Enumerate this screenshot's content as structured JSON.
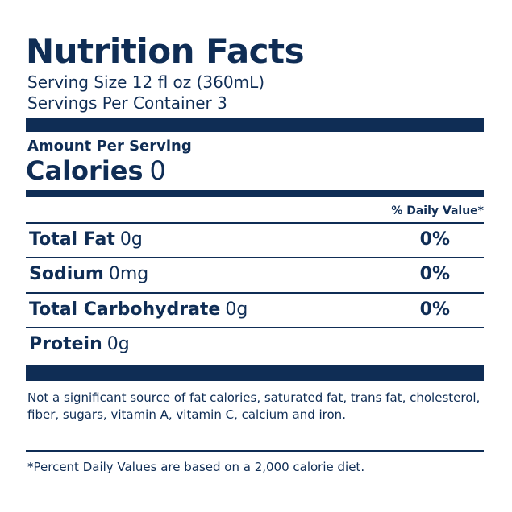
{
  "colors": {
    "ink": "#0f2d55",
    "background": "#ffffff"
  },
  "label": {
    "title": "Nutrition Facts",
    "serving_size": "Serving Size 12 fl oz (360mL)",
    "servings_per_container": "Servings Per Container 3",
    "amount_per_serving": "Amount Per Serving",
    "calories_label": "Calories",
    "calories_value": "0",
    "daily_value_header": "% Daily Value*",
    "nutrients": [
      {
        "name": "Total Fat",
        "amount": "0g",
        "daily_value": "0%"
      },
      {
        "name": "Sodium",
        "amount": "0mg",
        "daily_value": "0%"
      },
      {
        "name": "Total Carbohydrate",
        "amount": "0g",
        "daily_value": "0%"
      },
      {
        "name": "Protein",
        "amount": "0g",
        "daily_value": ""
      }
    ],
    "not_significant_note": "Not a significant source of fat calories, saturated fat, trans fat, cholesterol, fiber, sugars, vitamin A, vitamin C, calcium and iron.",
    "daily_value_footnote": "*Percent Daily Values are based on a 2,000 calorie diet."
  }
}
